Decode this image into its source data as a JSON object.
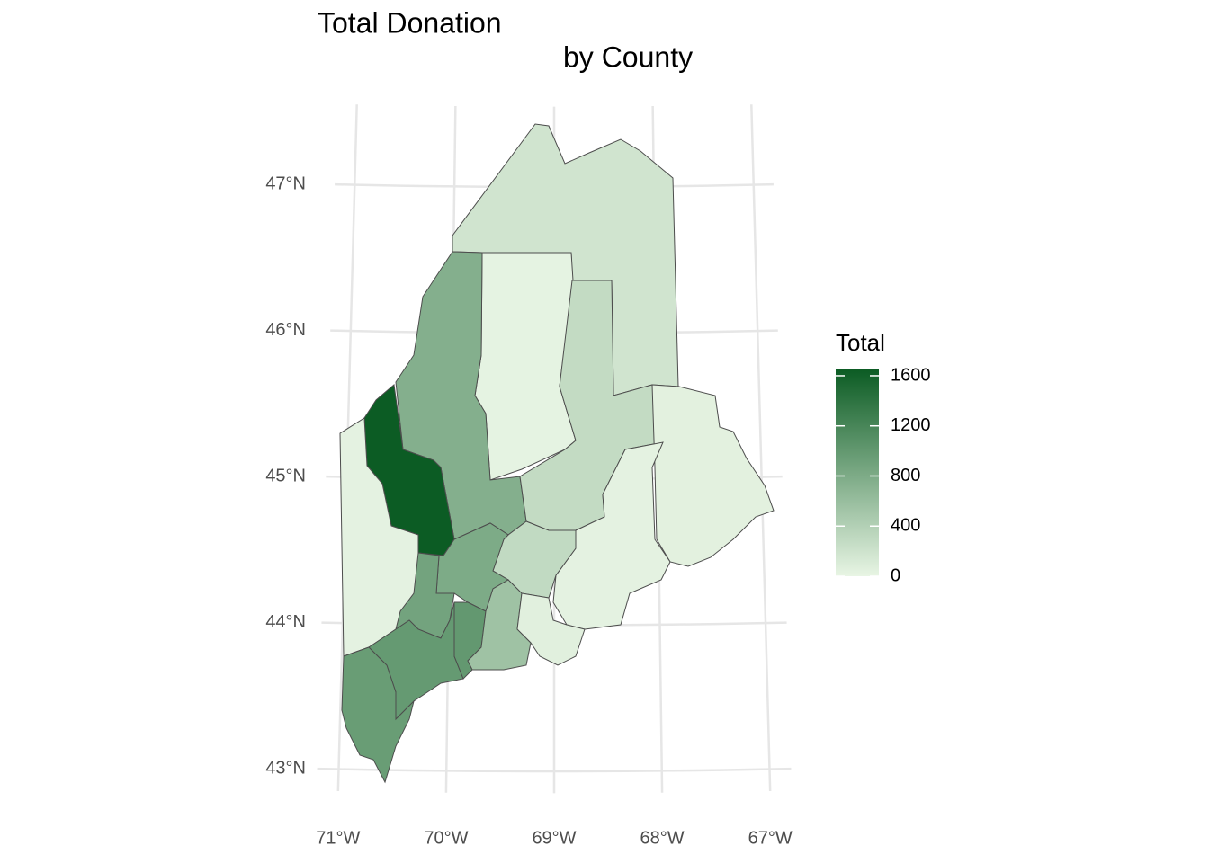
{
  "chart_data": {
    "type": "choropleth",
    "title": "Total Donation",
    "subtitle": "by County",
    "values": [
      180,
      20,
      750,
      280,
      1650,
      30,
      40,
      30,
      290,
      800,
      880,
      980,
      950,
      1000,
      550,
      50
    ],
    "color_low": "#e8f5e4",
    "color_high": "#0c5c24",
    "legend_title": "Total",
    "legend_lim": [
      0,
      1650
    ],
    "legend_ticks": [
      0,
      400,
      800,
      1200,
      1600
    ],
    "xlim": [
      -71.2,
      -66.8
    ],
    "ylim": [
      42.85,
      47.55
    ],
    "xticks": [
      {
        "value": -71,
        "label": "71°W"
      },
      {
        "value": -70,
        "label": "70°W"
      },
      {
        "value": -69,
        "label": "69°W"
      },
      {
        "value": -68,
        "label": "68°W"
      },
      {
        "value": -67,
        "label": "67°W"
      }
    ],
    "yticks": [
      {
        "value": 43,
        "label": "43°N"
      },
      {
        "value": 44,
        "label": "44°N"
      },
      {
        "value": 45,
        "label": "45°N"
      },
      {
        "value": 46,
        "label": "46°N"
      },
      {
        "value": 47,
        "label": "47°N"
      }
    ],
    "grid": true
  }
}
